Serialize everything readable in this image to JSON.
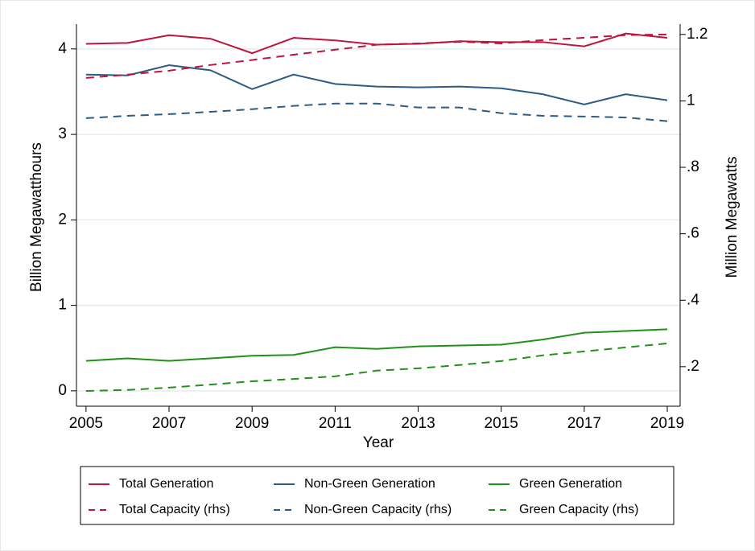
{
  "chart_data": {
    "type": "line",
    "x_label": "Year",
    "y_label": "Billion Megawatthours",
    "y2_label": "Million Megawatts",
    "x": [
      2005,
      2006,
      2007,
      2008,
      2009,
      2010,
      2011,
      2012,
      2013,
      2014,
      2015,
      2016,
      2017,
      2018,
      2019
    ],
    "xlim": [
      2004.77,
      2019.31
    ],
    "xticks": [
      2005,
      2007,
      2009,
      2011,
      2013,
      2015,
      2017,
      2019
    ],
    "ylim": [
      -0.18,
      4.29
    ],
    "yticks": [
      0,
      1,
      2,
      3,
      4
    ],
    "y2lim": [
      0.081,
      1.231
    ],
    "y2ticks": [
      {
        "value": 0.2,
        "label": ".2"
      },
      {
        "value": 0.4,
        "label": ".4"
      },
      {
        "value": 0.6,
        "label": ".6"
      },
      {
        "value": 0.8,
        "label": ".8"
      },
      1,
      1.2
    ],
    "grid": true,
    "legend_position": "bottom",
    "series": [
      {
        "name": "Total Generation",
        "color": "#c0143c",
        "style": "solid",
        "values": [
          4.06,
          4.07,
          4.16,
          4.12,
          3.95,
          4.13,
          4.1,
          4.05,
          4.06,
          4.09,
          4.08,
          4.08,
          4.03,
          4.18,
          4.13
        ]
      },
      {
        "name": "Non-Green Generation",
        "color": "#2c5b86",
        "style": "solid",
        "values": [
          3.7,
          3.69,
          3.81,
          3.75,
          3.53,
          3.7,
          3.59,
          3.56,
          3.55,
          3.56,
          3.54,
          3.47,
          3.35,
          3.47,
          3.4
        ]
      },
      {
        "name": "Green Generation",
        "color": "#22911a",
        "style": "solid",
        "values": [
          0.35,
          0.38,
          0.35,
          0.38,
          0.41,
          0.42,
          0.51,
          0.49,
          0.52,
          0.53,
          0.54,
          0.6,
          0.68,
          0.7,
          0.72
        ]
      },
      {
        "name": "Total Capacity (rhs)",
        "color": "#c0143c",
        "style": "dashed",
        "axis": "y2",
        "values": [
          1.069,
          1.079,
          1.091,
          1.108,
          1.123,
          1.139,
          1.154,
          1.169,
          1.173,
          1.178,
          1.173,
          1.183,
          1.19,
          1.198,
          1.2
        ]
      },
      {
        "name": "Non-Green Capacity (rhs)",
        "color": "#2c5b86",
        "style": "dashed",
        "axis": "y2",
        "values": [
          0.948,
          0.955,
          0.96,
          0.967,
          0.975,
          0.985,
          0.992,
          0.992,
          0.98,
          0.98,
          0.963,
          0.955,
          0.953,
          0.95,
          0.939
        ]
      },
      {
        "name": "Green Capacity (rhs)",
        "color": "#22911a",
        "style": "dashed",
        "axis": "y2",
        "values": [
          0.127,
          0.13,
          0.137,
          0.146,
          0.156,
          0.163,
          0.171,
          0.188,
          0.195,
          0.205,
          0.217,
          0.234,
          0.246,
          0.258,
          0.27
        ]
      }
    ]
  }
}
